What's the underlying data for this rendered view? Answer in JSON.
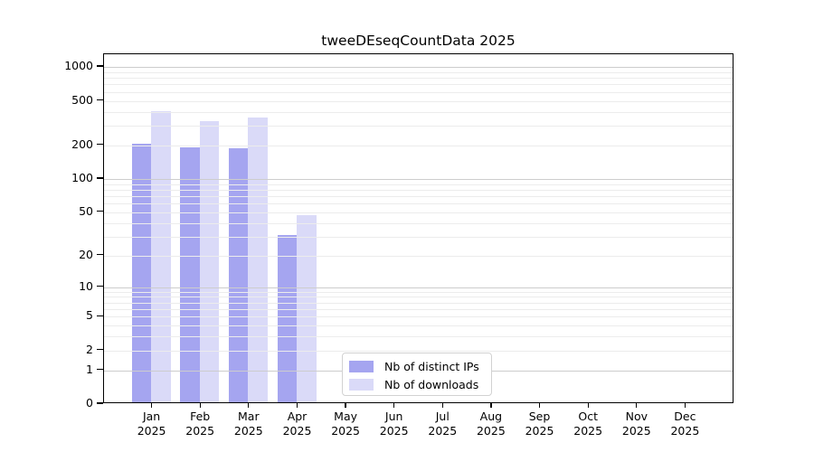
{
  "title": "tweeDEseqCountData 2025",
  "chart_data": {
    "type": "bar",
    "title": "tweeDEseqCountData 2025",
    "categories": [
      "Jan 2025",
      "Feb 2025",
      "Mar 2025",
      "Apr 2025",
      "May 2025",
      "Jun 2025",
      "Jul 2025",
      "Aug 2025",
      "Sep 2025",
      "Oct 2025",
      "Nov 2025",
      "Dec 2025"
    ],
    "series": [
      {
        "name": "Nb of distinct IPs",
        "color": "#a5a5f0",
        "values": [
          200,
          185,
          180,
          30,
          null,
          null,
          null,
          null,
          null,
          null,
          null,
          null
        ]
      },
      {
        "name": "Nb of downloads",
        "color": "#dadaf8",
        "values": [
          390,
          320,
          340,
          45,
          null,
          null,
          null,
          null,
          null,
          null,
          null,
          null
        ]
      }
    ],
    "y_scale": "log10(value+1)",
    "y_ticks": [
      1000,
      500,
      200,
      100,
      50,
      20,
      10,
      5,
      2,
      1,
      0
    ],
    "ylim": [
      0,
      1300
    ],
    "grid": "horizontal, major and minor log decades",
    "legend_position": "lower center",
    "colors": {
      "grid_major": "#cdcdcd",
      "grid_minor": "#ececec",
      "axis": "#000000",
      "legend_border": "#d2d2d2",
      "background": "#ffffff"
    }
  }
}
